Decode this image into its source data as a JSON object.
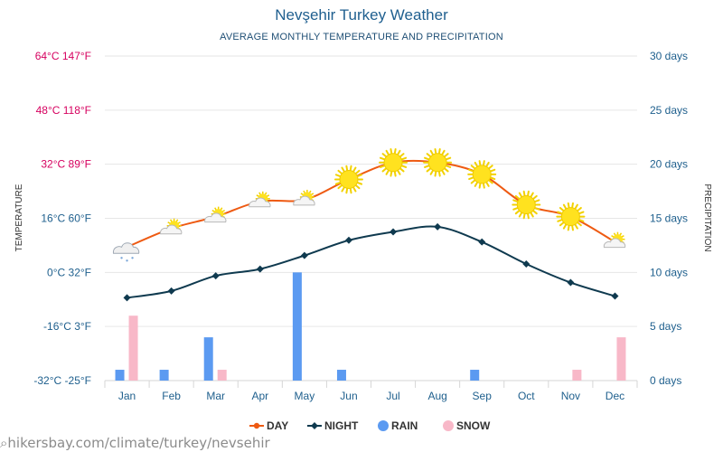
{
  "chart_data": {
    "type": "line+bar",
    "title": "Nevşehir Turkey Weather",
    "subtitle": "AVERAGE MONTHLY TEMPERATURE AND PRECIPITATION",
    "months": [
      "Jan",
      "Feb",
      "Mar",
      "Apr",
      "May",
      "Jun",
      "Jul",
      "Aug",
      "Sep",
      "Oct",
      "Nov",
      "Dec"
    ],
    "left_axis": {
      "label": "TEMPERATURE",
      "min": -32,
      "max": 64,
      "ticks": [
        "64°C 147°F",
        "48°C 118°F",
        "32°C 89°F",
        "16°C 60°F",
        "0°C 32°F",
        "-16°C 3°F",
        "-32°C -25°F"
      ]
    },
    "right_axis": {
      "label": "PRECIPITATION",
      "min": 0,
      "max": 30,
      "ticks": [
        "30 days",
        "25 days",
        "20 days",
        "15 days",
        "10 days",
        "5 days",
        "0 days"
      ]
    },
    "series": [
      {
        "name": "DAY",
        "color": "#ee5a12",
        "icons": [
          "snow-cloud-icon",
          "partly-cloudy-icon",
          "partly-cloudy-icon",
          "partly-cloudy-icon",
          "partly-cloudy-icon",
          "sun-icon",
          "sun-icon",
          "sun-icon",
          "sun-icon",
          "sun-icon",
          "sun-icon",
          "partly-cloudy-icon"
        ],
        "values": [
          7.5,
          13,
          16.5,
          21,
          21.5,
          27.5,
          32.5,
          32.5,
          29,
          20,
          16.5,
          9
        ]
      },
      {
        "name": "NIGHT",
        "color": "#0f3a4f",
        "values": [
          -7.5,
          -5.5,
          -1,
          1,
          5,
          9.5,
          12,
          13.5,
          9,
          2.5,
          -3,
          -7
        ]
      },
      {
        "name": "RAIN",
        "color": "#5b9af1",
        "values": [
          1,
          1,
          4,
          0,
          10,
          1,
          0,
          0,
          1,
          0,
          0,
          0
        ]
      },
      {
        "name": "SNOW",
        "color": "#f8b8c8",
        "values": [
          6,
          0,
          1,
          0,
          0,
          0,
          0,
          0,
          0,
          0,
          1,
          4
        ]
      }
    ],
    "grid": true,
    "legend_position": "bottom"
  },
  "watermark": "hikersbay.com/climate/turkey/nevsehir",
  "colors": {
    "left_axis_top_ticks": "#d6005f",
    "left_axis_bottom_ticks": "#1e5f8d",
    "right_axis_ticks": "#1e5f8d",
    "grid": "#e6e6e6"
  }
}
